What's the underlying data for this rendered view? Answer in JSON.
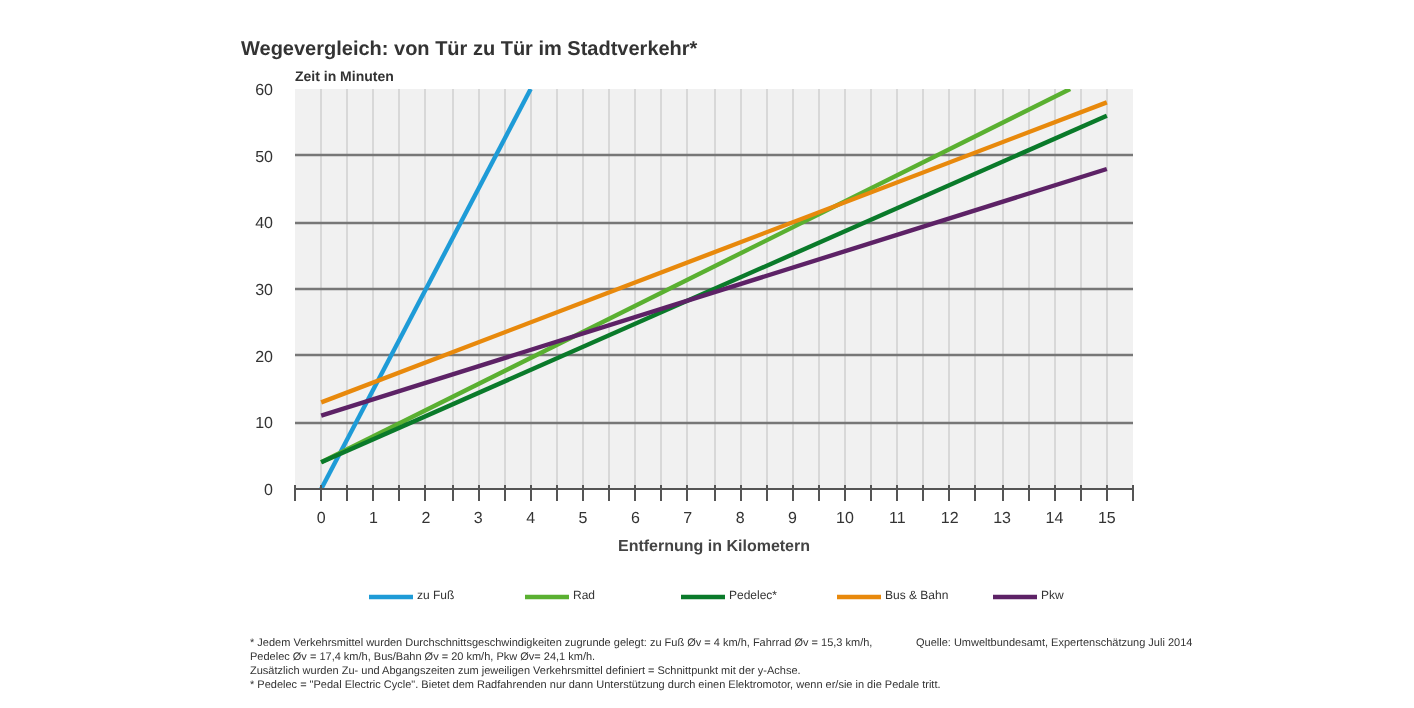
{
  "chart_data": {
    "type": "line",
    "title": "Wegevergleich: von Tür zu Tür im Stadtverkehr*",
    "ylabel": "Zeit in Minuten",
    "xlabel": "Entfernung in Kilometern",
    "xlim": [
      -0.5,
      15.5
    ],
    "ylim": [
      0,
      60
    ],
    "xticks": [
      {
        "value": -0.5,
        "label": null
      },
      0,
      {
        "value": 0.5,
        "label": null
      },
      1,
      {
        "value": 1.5,
        "label": null
      },
      2,
      {
        "value": 2.5,
        "label": null
      },
      3,
      {
        "value": 3.5,
        "label": null
      },
      4,
      {
        "value": 4.5,
        "label": null
      },
      5,
      {
        "value": 5.5,
        "label": null
      },
      6,
      {
        "value": 6.5,
        "label": null
      },
      7,
      {
        "value": 7.5,
        "label": null
      },
      8,
      {
        "value": 8.5,
        "label": null
      },
      9,
      {
        "value": 9.5,
        "label": null
      },
      10,
      {
        "value": 10.5,
        "label": null
      },
      11,
      {
        "value": 11.5,
        "label": null
      },
      12,
      {
        "value": 12.5,
        "label": null
      },
      13,
      {
        "value": 13.5,
        "label": null
      },
      14,
      {
        "value": 14.5,
        "label": null
      },
      15,
      {
        "value": 15.5,
        "label": null
      }
    ],
    "yticks": [
      0,
      10,
      20,
      30,
      40,
      50,
      60
    ],
    "grid": true,
    "legend": "bottom",
    "marker": "none",
    "line_style": "solid",
    "series": [
      {
        "name": "zu Fuß",
        "color": "#1e9bd7",
        "x": [
          0,
          4
        ],
        "values": [
          0,
          60
        ]
      },
      {
        "name": "Rad",
        "color": "#5ab031",
        "x": [
          0,
          14.3
        ],
        "values": [
          4,
          60
        ]
      },
      {
        "name": "Pedelec*",
        "color": "#0a7a2a",
        "x": [
          0,
          15
        ],
        "values": [
          4,
          56
        ]
      },
      {
        "name": "Bus & Bahn",
        "color": "#e8890c",
        "x": [
          0,
          15
        ],
        "values": [
          13,
          58
        ]
      },
      {
        "name": "Pkw",
        "color": "#5d2266",
        "x": [
          0,
          15
        ],
        "values": [
          11,
          48
        ]
      }
    ],
    "annotations": [
      "* Jedem Verkehrsmittel wurden Durchschnittsgeschwindigkeiten zugrunde gelegt: zu Fuß Øv = 4 km/h, Fahrrad Øv = 15,3 km/h,",
      "Pedelec Øv = 17,4 km/h, Bus/Bahn Øv = 20 km/h, Pkw Øv= 24,1 km/h.",
      "Zusätzlich wurden Zu- und Abgangszeiten zum jeweiligen Verkehrsmittel definiert = Schnittpunkt mit der y-Achse.",
      "* Pedelec = \"Pedal Electric Cycle\". Bietet dem Radfahrenden nur dann Unterstützung durch einen Elektromotor, wenn er/sie in die Pedale tritt.",
      "Quelle: Umweltbundesamt, Expertenschätzung Juli 2014"
    ]
  }
}
